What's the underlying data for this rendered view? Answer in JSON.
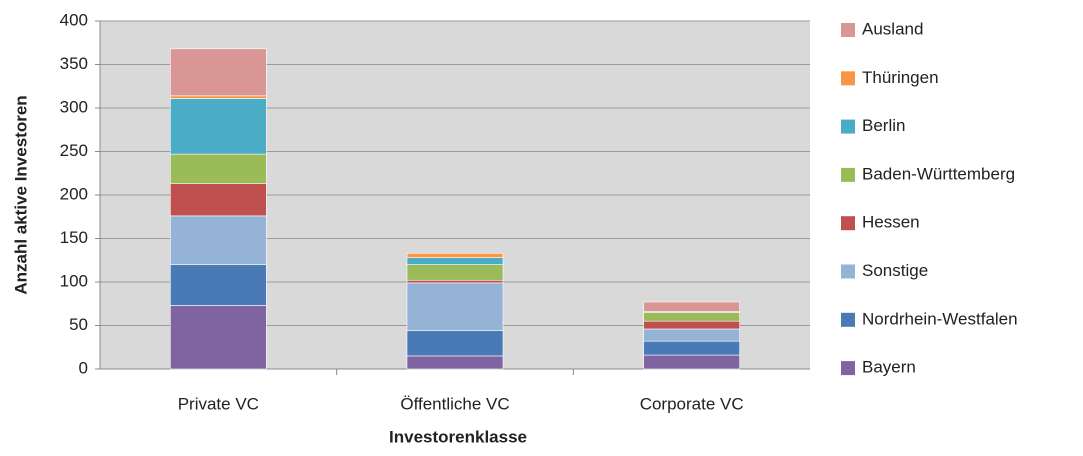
{
  "chart_data": {
    "type": "stacked_bar",
    "x_label": "Investorenklasse",
    "y_label": "Anzahl aktive Investoren",
    "categories": [
      "Private VC",
      "Öffentliche VC",
      "Corporate VC"
    ],
    "series": [
      {
        "name": "Bayern",
        "color": "#8064a2",
        "values": [
          73,
          15,
          16
        ]
      },
      {
        "name": "Nordrhein-Westfalen",
        "color": "#4a7ab5",
        "values": [
          47,
          29,
          16
        ]
      },
      {
        "name": "Sonstige",
        "color": "#95b3d7",
        "values": [
          56,
          55,
          14
        ]
      },
      {
        "name": "Hessen",
        "color": "#c0504d",
        "values": [
          37,
          3,
          9
        ]
      },
      {
        "name": "Baden-Württemberg",
        "color": "#9bbb59",
        "values": [
          34,
          18,
          10
        ]
      },
      {
        "name": "Berlin",
        "color": "#4bacc6",
        "values": [
          64,
          8,
          1
        ]
      },
      {
        "name": "Thüringen",
        "color": "#f79646",
        "values": [
          3,
          5,
          0
        ]
      },
      {
        "name": "Ausland",
        "color": "#d99694",
        "values": [
          54,
          0,
          11
        ]
      }
    ],
    "ylim": [
      0,
      400
    ],
    "yticks": [
      0,
      50,
      100,
      150,
      200,
      250,
      300,
      350,
      400
    ],
    "grid": true
  }
}
